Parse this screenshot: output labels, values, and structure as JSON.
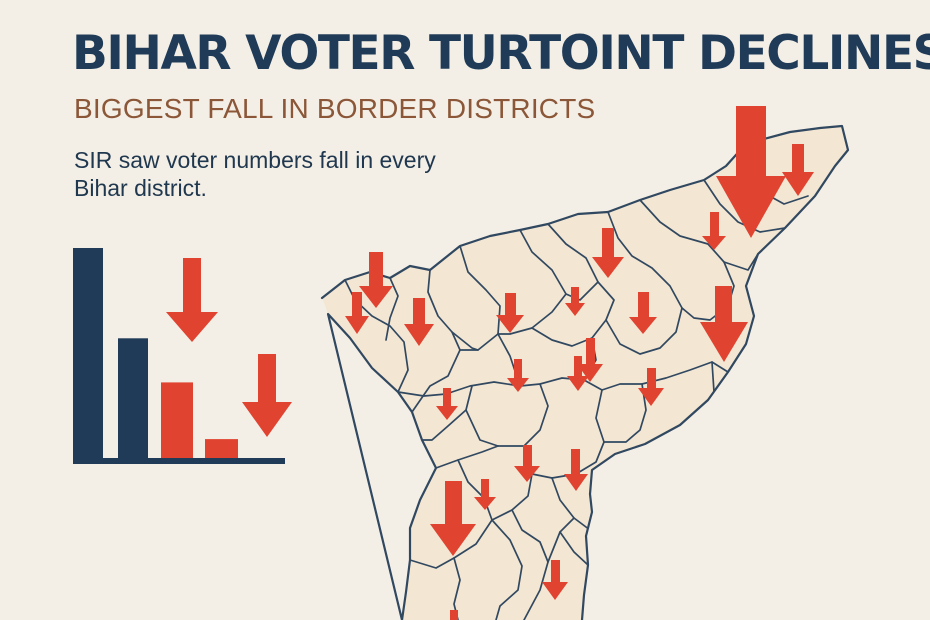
{
  "header": {
    "title": "BIHAR VOTER TURTOINT DECLINES",
    "subtitle": "BIGGEST FALL IN BORDER DISTRICTS",
    "description": "SIR saw voter numbers fall in every Bihar district."
  },
  "colors": {
    "background": "#f4efe6",
    "navy": "#1f3b57",
    "subtitle_brown": "#8b5738",
    "red": "#e14331",
    "map_fill": "#f3e6d2",
    "map_stroke": "#314861"
  },
  "legend_chart": {
    "type": "bar",
    "values": [
      100,
      57,
      36,
      9
    ],
    "bar_colors": [
      "#1f3b57",
      "#1f3b57",
      "#e14331",
      "#e14331"
    ]
  }
}
